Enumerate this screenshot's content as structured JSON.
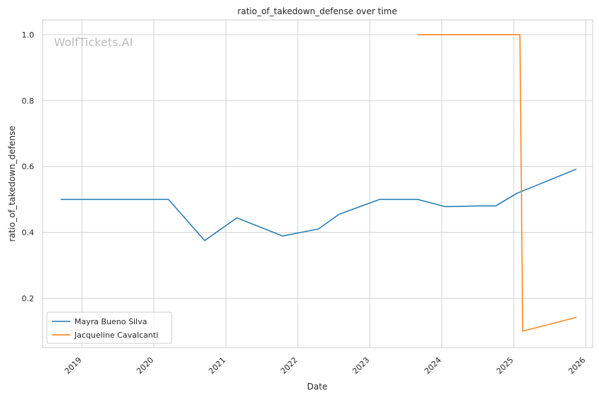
{
  "chart_data": {
    "type": "line",
    "title": "ratio_of_takedown_defense over time",
    "xlabel": "Date",
    "ylabel": "ratio_of_takedown_defense",
    "watermark": "WolfTickets.AI",
    "xlim": [
      "2018-06-15",
      "2026-02-05"
    ],
    "ylim": [
      0.05,
      1.045
    ],
    "x_ticks": [
      "2019",
      "2020",
      "2021",
      "2022",
      "2023",
      "2024",
      "2025",
      "2026"
    ],
    "y_ticks": [
      "0.2",
      "0.4",
      "0.6",
      "0.8",
      "1.0"
    ],
    "grid": true,
    "legend_position": "lower-left",
    "series": [
      {
        "name": "Mayra Bueno Silva",
        "color": "#1f77b4",
        "points": [
          {
            "x": "2018-09-15",
            "y": 0.5
          },
          {
            "x": "2020-03-15",
            "y": 0.5
          },
          {
            "x": "2020-09-15",
            "y": 0.375
          },
          {
            "x": "2021-02-25",
            "y": 0.444
          },
          {
            "x": "2021-10-15",
            "y": 0.389
          },
          {
            "x": "2022-04-15",
            "y": 0.41
          },
          {
            "x": "2022-07-30",
            "y": 0.455
          },
          {
            "x": "2023-02-20",
            "y": 0.5
          },
          {
            "x": "2023-09-01",
            "y": 0.5
          },
          {
            "x": "2024-01-20",
            "y": 0.478
          },
          {
            "x": "2024-07-15",
            "y": 0.48
          },
          {
            "x": "2024-10-01",
            "y": 0.48
          },
          {
            "x": "2025-01-15",
            "y": 0.518
          },
          {
            "x": "2025-11-15",
            "y": 0.592
          }
        ]
      },
      {
        "name": "Jacqueline Cavalcanti",
        "color": "#ff7f0e",
        "points": [
          {
            "x": "2023-09-01",
            "y": 1.0
          },
          {
            "x": "2025-02-01",
            "y": 1.0
          },
          {
            "x": "2025-02-15",
            "y": 0.1
          },
          {
            "x": "2025-11-15",
            "y": 0.142
          }
        ]
      }
    ]
  }
}
